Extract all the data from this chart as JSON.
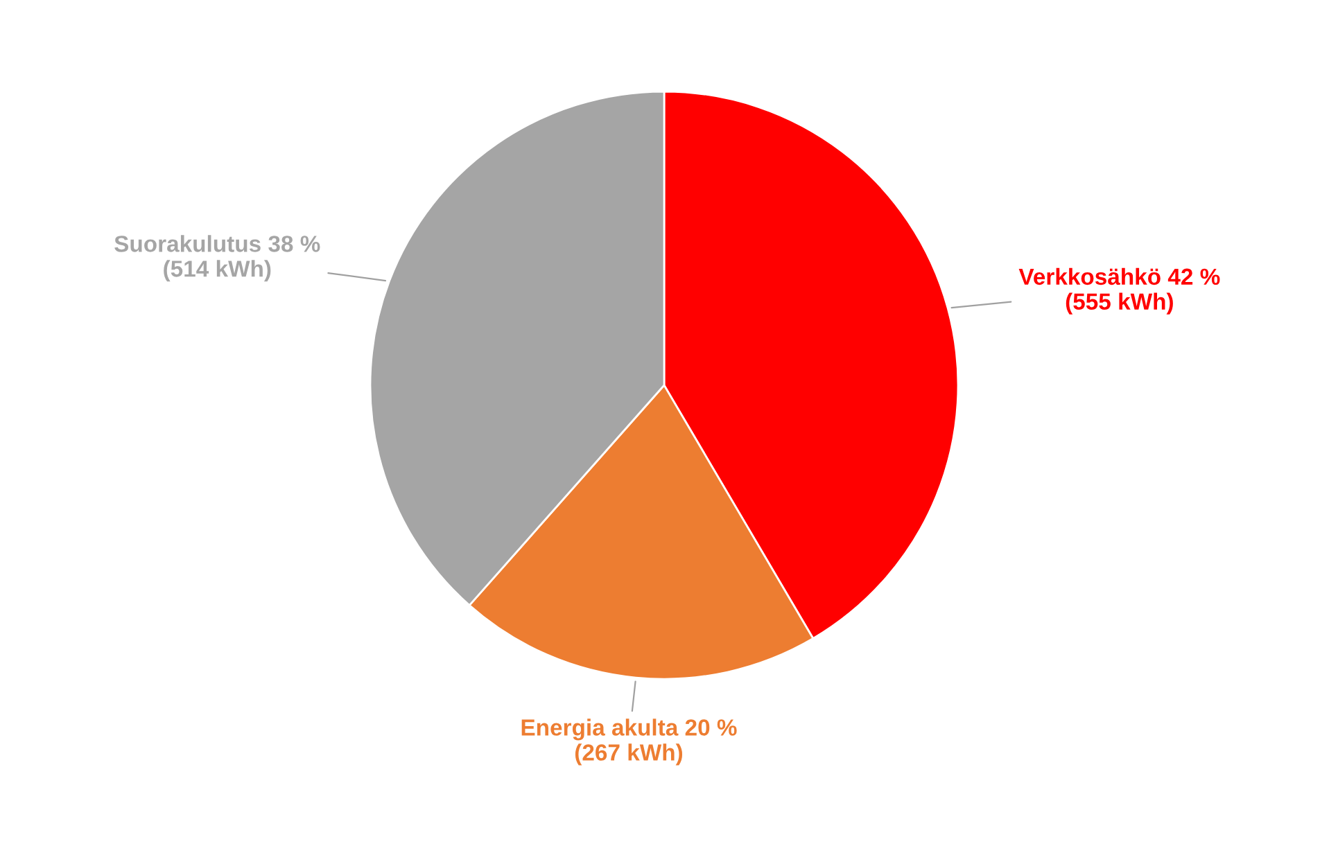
{
  "chart_data": {
    "type": "pie",
    "categories": [
      "Verkkosähkö",
      "Energia akulta",
      "Suorakulutus"
    ],
    "values": [
      555,
      267,
      514
    ],
    "colors": [
      "#ff0000",
      "#ed7d31",
      "#a5a5a5"
    ],
    "value_labels": [
      "42 %\n(555 kWh)",
      "20 %\n(267 kWh)",
      "38 %\n(514 kWh)"
    ]
  }
}
